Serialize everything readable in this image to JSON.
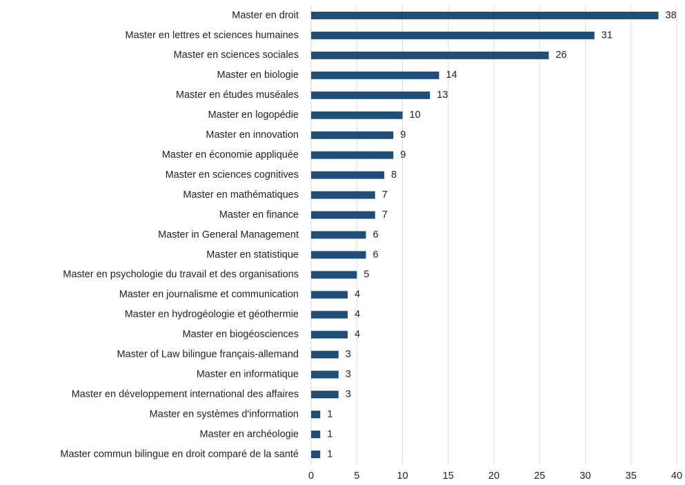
{
  "chart_data": {
    "type": "barh",
    "categories": [
      "Master en droit",
      "Master en lettres et sciences humaines",
      "Master en sciences sociales",
      "Master en biologie",
      "Master en études muséales",
      "Master en logopédie",
      "Master en innovation",
      "Master en économie appliquée",
      "Master en sciences cognitives",
      "Master en mathématiques",
      "Master en finance",
      "Master in General Management",
      "Master en statistique",
      "Master en psychologie du travail et des organisations",
      "Master en journalisme et communication",
      "Master en hydrogéologie et géothermie",
      "Master en biogéosciences",
      "Master of Law bilingue français-allemand",
      "Master en informatique",
      "Master en développement international des affaires",
      "Master en systèmes d'information",
      "Master en archéologie",
      "Master commun bilingue en droit comparé de la santé"
    ],
    "values": [
      38,
      31,
      26,
      14,
      13,
      10,
      9,
      9,
      8,
      7,
      7,
      6,
      6,
      5,
      4,
      4,
      4,
      3,
      3,
      3,
      1,
      1,
      1
    ],
    "color": "#1f4e79",
    "xlim": [
      0,
      40
    ],
    "xticks": [
      0,
      5,
      10,
      15,
      20,
      25,
      30,
      35,
      40
    ],
    "grid": true
  }
}
